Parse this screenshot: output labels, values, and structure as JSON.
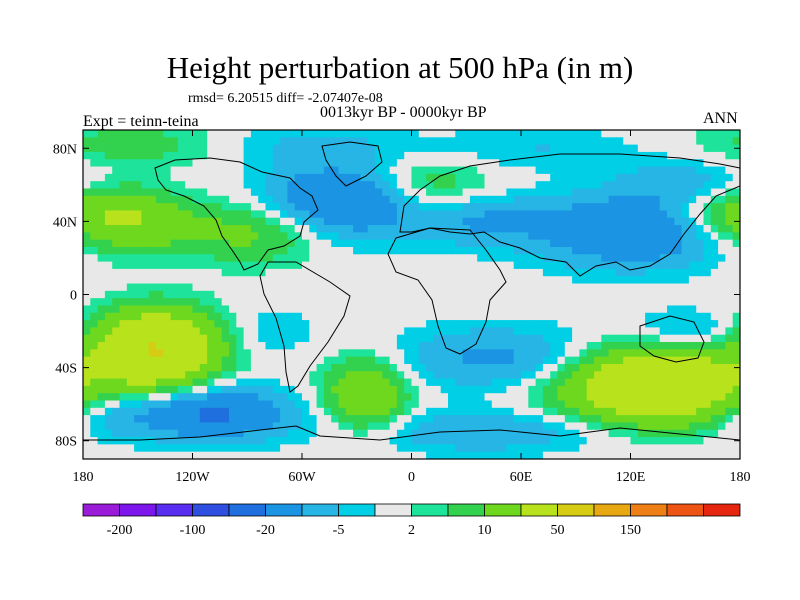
{
  "title": "Height perturbation at 500 hPa (in m)",
  "stats_line": "rmsd= 6.20515 diff= -2.07407e-08",
  "experiment_label": "Expt = teinn-teina",
  "period_label": "0013kyr BP - 0000kyr BP",
  "season_label": "ANN",
  "map": {
    "projection": "cylindrical-equidistant",
    "lon_range": [
      -180,
      180
    ],
    "lat_range": [
      -90,
      90
    ],
    "lon_ticks": [
      {
        "value": -180,
        "label": "180"
      },
      {
        "value": -120,
        "label": "120W"
      },
      {
        "value": -60,
        "label": "60W"
      },
      {
        "value": 0,
        "label": "0"
      },
      {
        "value": 60,
        "label": "60E"
      },
      {
        "value": 120,
        "label": "120E"
      },
      {
        "value": 180,
        "label": "180"
      }
    ],
    "lat_ticks": [
      {
        "value": 80,
        "label": "80N"
      },
      {
        "value": 40,
        "label": "40N"
      },
      {
        "value": 0,
        "label": "0"
      },
      {
        "value": -40,
        "label": "40S"
      },
      {
        "value": -80,
        "label": "80S"
      }
    ],
    "field_anomalies": [
      {
        "lon": -40,
        "lat": 50,
        "value": -22,
        "sx": 30,
        "sy": 14
      },
      {
        "lon": 40,
        "lat": 40,
        "value": -10,
        "sx": 25,
        "sy": 10
      },
      {
        "lon": 120,
        "lat": 35,
        "value": -20,
        "sx": 35,
        "sy": 14
      },
      {
        "lon": 150,
        "lat": 60,
        "value": -8,
        "sx": 25,
        "sy": 10
      },
      {
        "lon": -60,
        "lat": 82,
        "value": -6,
        "sx": 40,
        "sy": 8
      },
      {
        "lon": 70,
        "lat": 80,
        "value": -5,
        "sx": 40,
        "sy": 8
      },
      {
        "lon": -150,
        "lat": 82,
        "value": 8,
        "sx": 40,
        "sy": 8
      },
      {
        "lon": -155,
        "lat": 40,
        "value": 18,
        "sx": 22,
        "sy": 12
      },
      {
        "lon": -85,
        "lat": 35,
        "value": 14,
        "sx": 30,
        "sy": 12
      },
      {
        "lon": 10,
        "lat": 60,
        "value": 10,
        "sx": 22,
        "sy": 10
      },
      {
        "lon": 170,
        "lat": 45,
        "value": 12,
        "sx": 25,
        "sy": 10
      },
      {
        "lon": -140,
        "lat": -30,
        "value": 50,
        "sx": 22,
        "sy": 14
      },
      {
        "lon": -110,
        "lat": -65,
        "value": -22,
        "sx": 30,
        "sy": 10
      },
      {
        "lon": -170,
        "lat": -65,
        "value": -8,
        "sx": 20,
        "sy": 10
      },
      {
        "lon": -25,
        "lat": -55,
        "value": 20,
        "sx": 16,
        "sy": 14
      },
      {
        "lon": 50,
        "lat": -35,
        "value": -12,
        "sx": 40,
        "sy": 12
      },
      {
        "lon": 135,
        "lat": -50,
        "value": 45,
        "sx": 35,
        "sy": 14
      },
      {
        "lon": 40,
        "lat": -75,
        "value": -10,
        "sx": 50,
        "sy": 8
      },
      {
        "lon": 150,
        "lat": -20,
        "value": -8,
        "sx": 20,
        "sy": 8
      },
      {
        "lon": -75,
        "lat": -20,
        "value": -5,
        "sx": 15,
        "sy": 8
      }
    ]
  },
  "colorbar": {
    "colors": [
      "#9a1bd8",
      "#7c16ea",
      "#5a2ef0",
      "#2e4fe0",
      "#1f6fde",
      "#1c94e4",
      "#27b5e6",
      "#00cfe6",
      "#e8e8e8",
      "#1ee39a",
      "#32d24e",
      "#6ed81e",
      "#b7e21c",
      "#d6cc14",
      "#e8a812",
      "#ee7f14",
      "#ee5414",
      "#e6260e"
    ],
    "levels": [
      -200,
      -150,
      -100,
      -50,
      -20,
      -10,
      -5,
      -2,
      2,
      5,
      10,
      20,
      50,
      100,
      150,
      200,
      250
    ],
    "labels": [
      {
        "boundary": 1,
        "text": "-200"
      },
      {
        "boundary": 3,
        "text": "-100"
      },
      {
        "boundary": 5,
        "text": "-20"
      },
      {
        "boundary": 7,
        "text": "-5"
      },
      {
        "boundary": 9,
        "text": "2"
      },
      {
        "boundary": 11,
        "text": "10"
      },
      {
        "boundary": 13,
        "text": "50"
      },
      {
        "boundary": 15,
        "text": "150"
      }
    ]
  }
}
